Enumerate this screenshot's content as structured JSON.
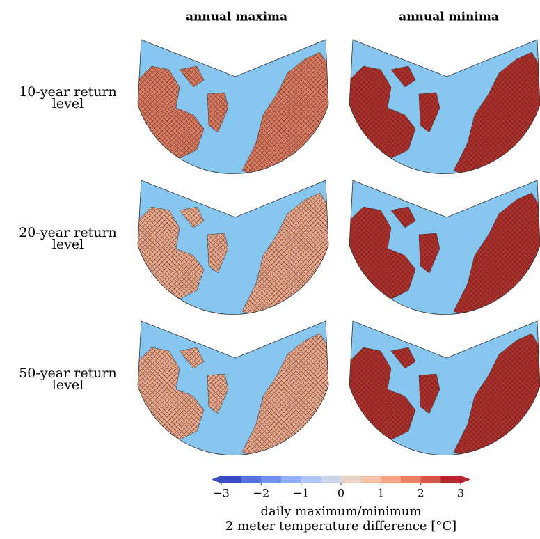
{
  "columns": [
    "annual maxima",
    "annual minima"
  ],
  "rows": [
    "10-year return level",
    "20-year return level",
    "50-year return level"
  ],
  "colorbar": {
    "range": [
      -3,
      3
    ],
    "ticks": [
      {
        "value": -3,
        "label": "−3"
      },
      {
        "value": -2,
        "label": "−2"
      },
      {
        "value": -1,
        "label": "−1"
      },
      0,
      1,
      2,
      3
    ],
    "colors": [
      "#3b4cc0",
      "#5572d9",
      "#7394ee",
      "#91b0f8",
      "#aec4f5",
      "#c9d4e6",
      "#e6d3c6",
      "#f3c0a6",
      "#f5a585",
      "#ea8266",
      "#d6574a",
      "#b8222f"
    ],
    "label": [
      "daily maximum/minimum",
      "2 meter temperature difference [°C]"
    ]
  }
}
